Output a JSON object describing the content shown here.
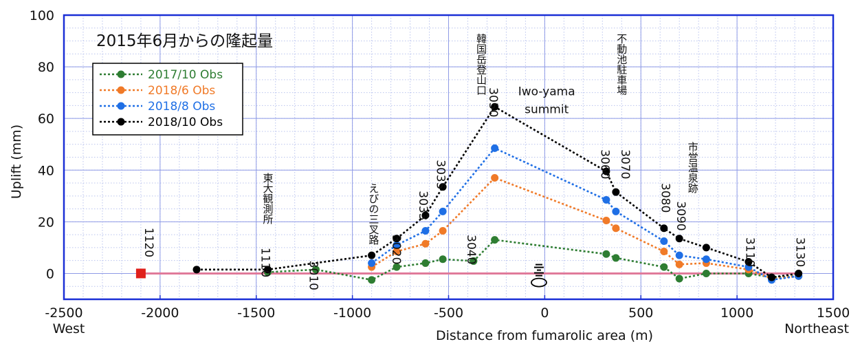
{
  "chart_data": {
    "type": "line",
    "title": "2015年6月からの隆起量",
    "xlabel": "Distance from fumarolic area (m)",
    "ylabel": "Uplift (mm)",
    "xlim": [
      -2500,
      1500
    ],
    "ylim": [
      -10,
      100
    ],
    "x_ticks": [
      -2500,
      -2000,
      -1500,
      -1000,
      -500,
      0,
      500,
      1000,
      1500
    ],
    "y_ticks": [
      0,
      20,
      40,
      60,
      80,
      100
    ],
    "x_direction_labels": {
      "left": "West",
      "right": "Northeast"
    },
    "grid": true,
    "legend_position": "top-left",
    "reference_point": {
      "label": "1120",
      "x": -2100,
      "y": 0,
      "color": "#e0201b"
    },
    "fumarole_label": "Iwo-yama summit",
    "series": [
      {
        "name": "2017/10 Obs",
        "color": "#2e7d32",
        "points": [
          [
            -1440,
            0.5
          ],
          [
            -1190,
            1.5
          ],
          [
            -900,
            -2.5
          ],
          [
            -770,
            2.5
          ],
          [
            -620,
            4
          ],
          [
            -530,
            5.5
          ],
          [
            -370,
            4.8
          ],
          [
            -260,
            13
          ],
          [
            320,
            7.5
          ],
          [
            370,
            6
          ],
          [
            620,
            2.5
          ],
          [
            700,
            -2
          ],
          [
            840,
            0
          ],
          [
            1060,
            0
          ],
          [
            1180,
            -1.5
          ],
          [
            1320,
            -1
          ]
        ]
      },
      {
        "name": "2018/6 Obs",
        "color": "#f07a28",
        "points": [
          [
            -900,
            2.5
          ],
          [
            -770,
            8.5
          ],
          [
            -620,
            11.5
          ],
          [
            -530,
            16.5
          ],
          [
            -260,
            37
          ],
          [
            320,
            20.5
          ],
          [
            370,
            17.5
          ],
          [
            620,
            8.5
          ],
          [
            700,
            3.5
          ],
          [
            840,
            4
          ],
          [
            1060,
            1.5
          ],
          [
            1180,
            -2
          ],
          [
            1320,
            -1
          ]
        ]
      },
      {
        "name": "2018/8 Obs",
        "color": "#1f6fe5",
        "points": [
          [
            -900,
            4
          ],
          [
            -770,
            11
          ],
          [
            -620,
            16.5
          ],
          [
            -530,
            24
          ],
          [
            -260,
            48.5
          ],
          [
            320,
            28.5
          ],
          [
            370,
            24
          ],
          [
            620,
            12.5
          ],
          [
            700,
            7
          ],
          [
            840,
            5.5
          ],
          [
            1060,
            2.5
          ],
          [
            1180,
            -2.5
          ],
          [
            1320,
            -1
          ]
        ]
      },
      {
        "name": "2018/10 Obs",
        "color": "#000000",
        "points": [
          [
            -1810,
            1.5
          ],
          [
            -1440,
            1.5
          ],
          [
            -900,
            7
          ],
          [
            -770,
            13.5
          ],
          [
            -620,
            22.5
          ],
          [
            -530,
            33.5
          ],
          [
            -260,
            64.5
          ],
          [
            320,
            39.5
          ],
          [
            370,
            31.5
          ],
          [
            620,
            17.5
          ],
          [
            700,
            13.5
          ],
          [
            840,
            10
          ],
          [
            1060,
            4.5
          ],
          [
            1180,
            -1.5
          ],
          [
            1320,
            0
          ]
        ]
      }
    ],
    "station_labels": [
      {
        "text": "1110",
        "x": -1450,
        "y": 10
      },
      {
        "text": "3010",
        "x": -1200,
        "y": 5
      },
      {
        "text": "3020",
        "x": -770,
        "y": 15
      },
      {
        "text": "3033",
        "x": -630,
        "y": 32
      },
      {
        "text": "3035",
        "x": -540,
        "y": 44
      },
      {
        "text": "3040",
        "x": -380,
        "y": 15
      },
      {
        "text": "3050",
        "x": -265,
        "y": 72
      },
      {
        "text": "3060",
        "x": 315,
        "y": 48
      },
      {
        "text": "3070",
        "x": 420,
        "y": 48
      },
      {
        "text": "3080",
        "x": 630,
        "y": 35
      },
      {
        "text": "3090",
        "x": 710,
        "y": 28
      },
      {
        "text": "3110",
        "x": 1070,
        "y": 14
      },
      {
        "text": "3130",
        "x": 1330,
        "y": 14
      }
    ],
    "place_labels": [
      {
        "text": "東大観測所",
        "x": -1440,
        "y": 39
      },
      {
        "text": "えびの三叉路",
        "x": -890,
        "y": 35
      },
      {
        "text": "韓国岳登山口",
        "x": -330,
        "y": 93
      },
      {
        "text": "不動池駐車場",
        "x": 400,
        "y": 93
      },
      {
        "text": "市営温泉跡",
        "x": 770,
        "y": 51
      }
    ]
  }
}
